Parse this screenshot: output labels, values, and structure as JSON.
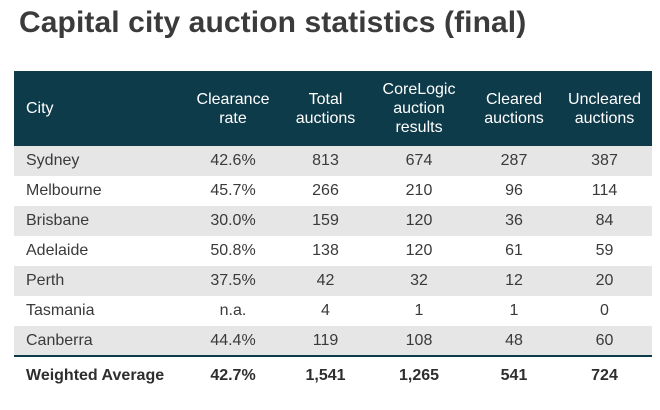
{
  "title": "Capital city auction statistics (final)",
  "table": {
    "headers": [
      [
        "City"
      ],
      [
        "Clearance",
        "rate"
      ],
      [
        "Total",
        "auctions"
      ],
      [
        "CoreLogic",
        "auction",
        "results"
      ],
      [
        "Cleared",
        "auctions"
      ],
      [
        "Uncleared",
        "auctions"
      ]
    ],
    "rows": [
      [
        "Sydney",
        "42.6%",
        "813",
        "674",
        "287",
        "387"
      ],
      [
        "Melbourne",
        "45.7%",
        "266",
        "210",
        "96",
        "114"
      ],
      [
        "Brisbane",
        "30.0%",
        "159",
        "120",
        "36",
        "84"
      ],
      [
        "Adelaide",
        "50.8%",
        "138",
        "120",
        "61",
        "59"
      ],
      [
        "Perth",
        "37.5%",
        "42",
        "32",
        "12",
        "20"
      ],
      [
        "Tasmania",
        "n.a.",
        "4",
        "1",
        "1",
        "0"
      ],
      [
        "Canberra",
        "44.4%",
        "119",
        "108",
        "48",
        "60"
      ]
    ],
    "total": [
      "Weighted Average",
      "42.7%",
      "1,541",
      "1,265",
      "541",
      "724"
    ]
  },
  "colors": {
    "header_bg": "#0e3b4a",
    "stripe_bg": "#e6e6e6",
    "title_text": "#3b3b3b"
  }
}
